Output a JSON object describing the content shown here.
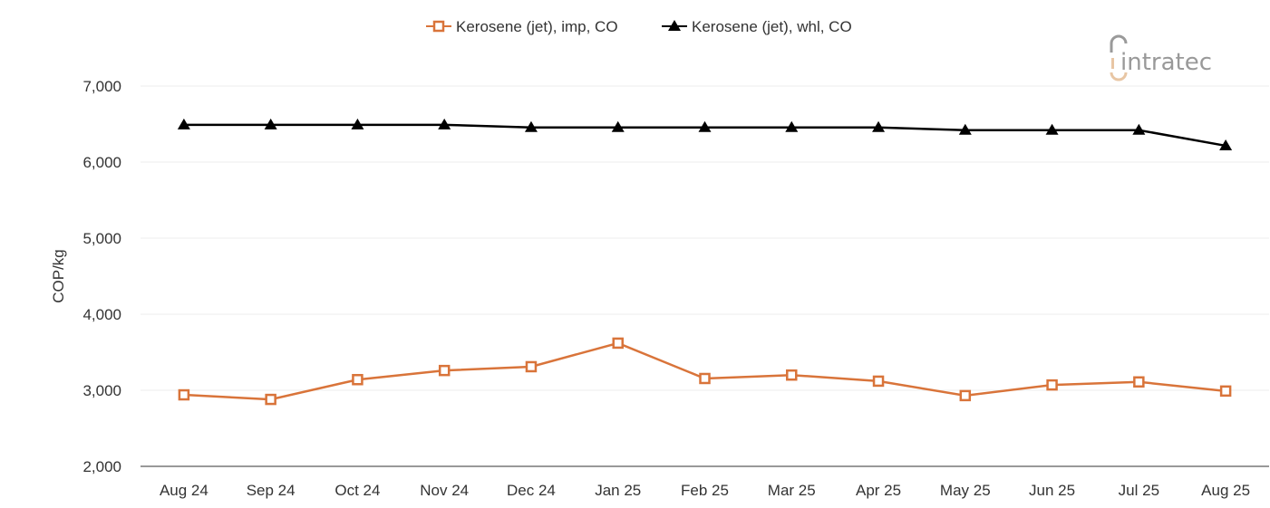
{
  "chart_data": {
    "type": "line",
    "title": "",
    "xlabel": "",
    "ylabel": "COP/kg",
    "ylim": [
      2000,
      7000
    ],
    "yticks": [
      "2,000",
      "3,000",
      "4,000",
      "5,000",
      "6,000",
      "7,000"
    ],
    "ytick_values": [
      2000,
      3000,
      4000,
      5000,
      6000,
      7000
    ],
    "grid": true,
    "legend_position": "top",
    "categories": [
      "Aug 24",
      "Sep 24",
      "Oct 24",
      "Nov 24",
      "Dec 24",
      "Jan 25",
      "Feb 25",
      "Mar 25",
      "Apr 25",
      "May 25",
      "Jun 25",
      "Jul 25",
      "Aug 25"
    ],
    "series": [
      {
        "name": "Kerosene (jet), imp, CO",
        "color": "#d9743a",
        "marker": "open-square",
        "values": [
          2940,
          2880,
          3140,
          3260,
          3310,
          3620,
          3155,
          3200,
          3120,
          2930,
          3070,
          3110,
          2990
        ]
      },
      {
        "name": "Kerosene (jet), whl, CO",
        "color": "#000000",
        "marker": "filled-triangle",
        "values": [
          6490,
          6490,
          6490,
          6490,
          6455,
          6455,
          6455,
          6455,
          6455,
          6420,
          6420,
          6420,
          6215
        ]
      }
    ]
  },
  "logo": {
    "text": "intratec"
  }
}
